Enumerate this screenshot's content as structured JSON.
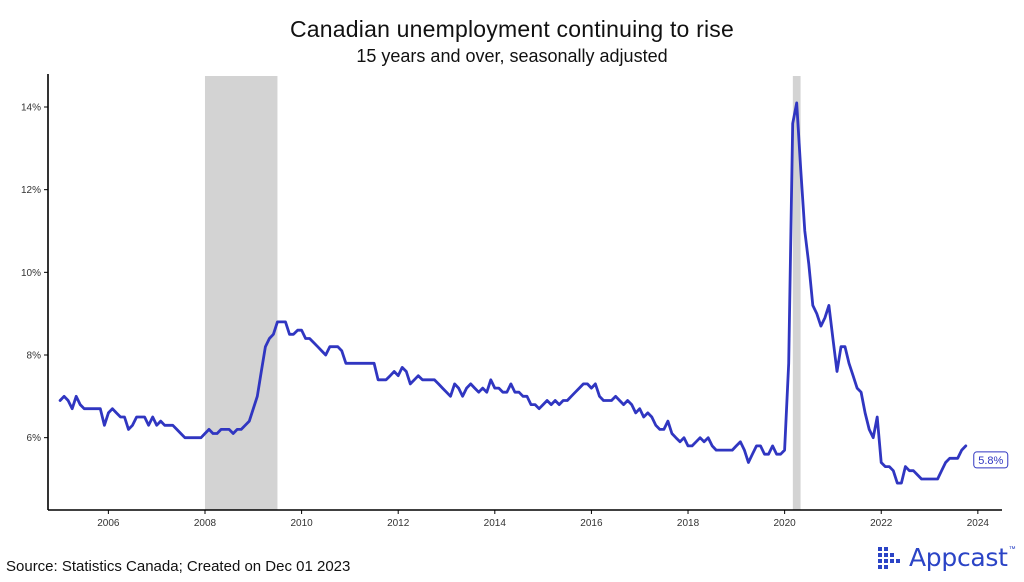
{
  "chart_data": {
    "type": "line",
    "title": "Canadian unemployment continuing to rise",
    "subtitle": "15 years and over, seasonally adjusted",
    "xlabel": "",
    "ylabel": "",
    "xlim": [
      2004.75,
      2024.5
    ],
    "ylim": [
      4.25,
      14.75
    ],
    "x_ticks": [
      2006,
      2008,
      2010,
      2012,
      2014,
      2016,
      2018,
      2020,
      2022,
      2024
    ],
    "y_ticks": [
      6,
      8,
      10,
      12,
      14
    ],
    "y_tick_suffix": "%",
    "grid": false,
    "recession_shading": [
      [
        2008.0,
        2009.5
      ],
      [
        2020.17,
        2020.33
      ]
    ],
    "series": [
      {
        "color": "#3036c1",
        "x_start": 2005.0,
        "x_step_months": 1,
        "values": [
          6.9,
          7.0,
          6.9,
          6.7,
          7.0,
          6.8,
          6.7,
          6.7,
          6.7,
          6.7,
          6.7,
          6.3,
          6.6,
          6.7,
          6.6,
          6.5,
          6.5,
          6.2,
          6.3,
          6.5,
          6.5,
          6.5,
          6.3,
          6.5,
          6.3,
          6.4,
          6.3,
          6.3,
          6.3,
          6.2,
          6.1,
          6.0,
          6.0,
          6.0,
          6.0,
          6.0,
          6.1,
          6.2,
          6.1,
          6.1,
          6.2,
          6.2,
          6.2,
          6.1,
          6.2,
          6.2,
          6.3,
          6.4,
          6.7,
          7.0,
          7.6,
          8.2,
          8.4,
          8.5,
          8.8,
          8.8,
          8.8,
          8.5,
          8.5,
          8.6,
          8.6,
          8.4,
          8.4,
          8.3,
          8.2,
          8.1,
          8.0,
          8.2,
          8.2,
          8.2,
          8.1,
          7.8,
          7.8,
          7.8,
          7.8,
          7.8,
          7.8,
          7.8,
          7.8,
          7.4,
          7.4,
          7.4,
          7.5,
          7.6,
          7.5,
          7.7,
          7.6,
          7.3,
          7.4,
          7.5,
          7.4,
          7.4,
          7.4,
          7.4,
          7.3,
          7.2,
          7.1,
          7.0,
          7.3,
          7.2,
          7.0,
          7.2,
          7.3,
          7.2,
          7.1,
          7.2,
          7.1,
          7.4,
          7.2,
          7.2,
          7.1,
          7.1,
          7.3,
          7.1,
          7.1,
          7.0,
          7.0,
          6.8,
          6.8,
          6.7,
          6.8,
          6.9,
          6.8,
          6.9,
          6.8,
          6.9,
          6.9,
          7.0,
          7.1,
          7.2,
          7.3,
          7.3,
          7.2,
          7.3,
          7.0,
          6.9,
          6.9,
          6.9,
          7.0,
          6.9,
          6.8,
          6.9,
          6.8,
          6.6,
          6.7,
          6.5,
          6.6,
          6.5,
          6.3,
          6.2,
          6.2,
          6.4,
          6.1,
          6.0,
          5.9,
          6.0,
          5.8,
          5.8,
          5.9,
          6.0,
          5.9,
          6.0,
          5.8,
          5.7,
          5.7,
          5.7,
          5.7,
          5.7,
          5.8,
          5.9,
          5.7,
          5.4,
          5.6,
          5.8,
          5.8,
          5.6,
          5.6,
          5.8,
          5.6,
          5.6,
          5.7,
          7.8,
          13.6,
          14.1,
          12.5,
          11.0,
          10.2,
          9.2,
          9.0,
          8.7,
          8.9,
          9.2,
          8.4,
          7.6,
          8.2,
          8.2,
          7.8,
          7.5,
          7.2,
          7.1,
          6.6,
          6.2,
          6.0,
          6.5,
          5.4,
          5.3,
          5.3,
          5.2,
          4.9,
          4.9,
          5.3,
          5.2,
          5.2,
          5.1,
          5.0,
          5.0,
          5.0,
          5.0,
          5.0,
          5.2,
          5.4,
          5.5,
          5.5,
          5.5,
          5.7,
          5.8
        ]
      }
    ],
    "end_label": "5.8%"
  },
  "source_note": "Source: Statistics Canada; Created on Dec 01 2023",
  "logo": {
    "text": "Appcast",
    "tm": "™",
    "icon": "dot-grid-icon",
    "color": "#2b44c6"
  }
}
